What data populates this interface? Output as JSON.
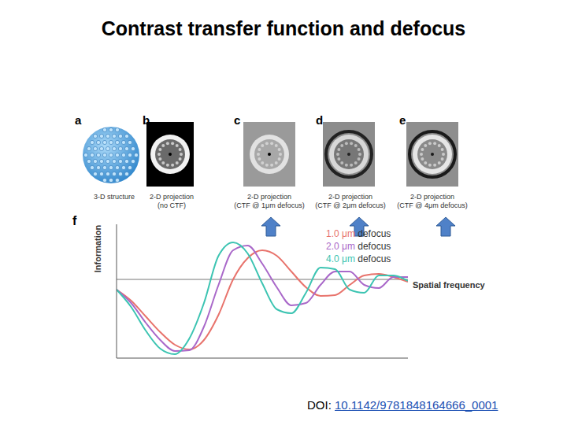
{
  "header": {
    "title": "Contrast transfer function and defocus"
  },
  "panels": [
    {
      "letter": "a",
      "caption": [
        "3-D structure"
      ]
    },
    {
      "letter": "b",
      "caption": [
        "2-D projection",
        "(no CTF)"
      ]
    },
    {
      "letter": "c",
      "caption": [
        "2-D projection",
        "(CTF @ 1μm defocus)"
      ]
    },
    {
      "letter": "d",
      "caption": [
        "2-D projection",
        "(CTF @ 2μm defocus)"
      ]
    },
    {
      "letter": "e",
      "caption": [
        "2-D projection",
        "(CTF @ 4μm defocus)"
      ]
    }
  ],
  "chart_data": {
    "type": "line",
    "letter": "f",
    "x_label": "Spatial frequency",
    "y_label": "Information",
    "tick_labels": false,
    "hline": 0,
    "xlim": [
      0,
      100
    ],
    "ylim": [
      -1,
      0.7
    ],
    "x": [
      0,
      5,
      10,
      15,
      20,
      25,
      30,
      35,
      40,
      45,
      50,
      55,
      60,
      65,
      70,
      75,
      80,
      85,
      90,
      95,
      100
    ],
    "series": [
      {
        "name": "1.0 μm defocus",
        "color": "#e8736c",
        "values": [
          -0.13,
          -0.27,
          -0.47,
          -0.67,
          -0.83,
          -0.89,
          -0.77,
          -0.45,
          0.0,
          0.27,
          0.37,
          0.3,
          0.1,
          -0.1,
          -0.21,
          -0.2,
          -0.07,
          0.05,
          0.07,
          0.03,
          -0.03
        ]
      },
      {
        "name": "2.0 μm defocus",
        "color": "#a968c9",
        "values": [
          -0.13,
          -0.3,
          -0.55,
          -0.77,
          -0.91,
          -0.9,
          -0.6,
          -0.07,
          0.37,
          0.43,
          0.2,
          -0.1,
          -0.33,
          -0.3,
          -0.07,
          0.1,
          0.1,
          -0.07,
          -0.11,
          0.03,
          0.03
        ]
      },
      {
        "name": "4.0 μm defocus",
        "color": "#3cc4b2",
        "values": [
          -0.13,
          -0.35,
          -0.65,
          -0.88,
          -0.95,
          -0.75,
          -0.3,
          0.3,
          0.47,
          0.33,
          -0.05,
          -0.38,
          -0.43,
          -0.17,
          0.15,
          0.13,
          -0.13,
          -0.17,
          0.05,
          0.05,
          -0.02
        ]
      }
    ]
  },
  "footer": {
    "doi_label": "DOI:",
    "doi": "10.1142/9781848164666_0001"
  }
}
